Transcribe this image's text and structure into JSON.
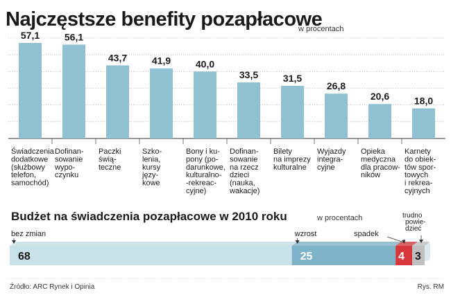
{
  "header": {
    "title": "Najczęstsze benefity pozapłacowe",
    "unit": "w procentach"
  },
  "chart_data": [
    {
      "type": "bar",
      "title": "Najczęstsze benefity pozapłacowe",
      "unit": "w procentach",
      "ylim": [
        0,
        60
      ],
      "grid": true,
      "categories": [
        [
          "Świadczenia",
          "dodatkowe",
          "(służbowy",
          "telefon,",
          "samochód)"
        ],
        [
          "Dofinan-",
          "sowanie",
          "wypo-",
          "czynku"
        ],
        [
          "Paczki",
          "świą-",
          "teczne"
        ],
        [
          "Szko-",
          "lenia,",
          "kursy",
          "języ-",
          "kowe"
        ],
        [
          "Bony i ku-",
          "pony (po-",
          "darunkowe,",
          "kulturalno-",
          "-rekreac-",
          "cyjne)"
        ],
        [
          "Dofinan-",
          "sowanie",
          "na rzecz",
          "dzieci",
          "(nauka,",
          "wakacje)"
        ],
        [
          "Bilety",
          "na imprezy",
          "kulturalne"
        ],
        [
          "Wyjazdy",
          "integra-",
          "cyjne"
        ],
        [
          "Opieka",
          "medyczna",
          "dla pracow-",
          "ników"
        ],
        [
          "Karnety",
          "do obiek-",
          "tów spor-",
          "towych",
          "i rekrea-",
          "cyjnych"
        ]
      ],
      "values": [
        57.1,
        56.1,
        43.7,
        41.9,
        40.0,
        33.5,
        31.5,
        26.8,
        20.6,
        18.0
      ],
      "value_labels": [
        "57,1",
        "56,1",
        "43,7",
        "41,9",
        "40,0",
        "33,5",
        "31,5",
        "26,8",
        "20,6",
        "18,0"
      ]
    },
    {
      "type": "bar",
      "orientation": "horizontal-stacked",
      "title": "Budżet na świadczenia pozapłacowe w 2010 roku",
      "unit": "w procentach",
      "segments": [
        {
          "name": "bez zmian",
          "value": 68,
          "label": "68",
          "color": "#c9e1e8",
          "label_color": "#1a1a1a"
        },
        {
          "name": "wzrost",
          "value": 25,
          "label": "25",
          "color": "#7fb3c8",
          "label_color": "#ffffff"
        },
        {
          "name": "spadek",
          "value": 4,
          "label": "4",
          "color": "#d6373a",
          "label_color": "#ffffff"
        },
        {
          "name": "trudno powie-dzieć",
          "name_lines": [
            "trudno",
            "powie-",
            "dzieć"
          ],
          "value": 3,
          "label": "3",
          "color": "#c0c0c0",
          "label_color": "#1a1a1a"
        }
      ]
    }
  ],
  "colors": {
    "bar": "#8fc1d3",
    "grid": "#9a9a9a"
  },
  "footer": {
    "source": "Źródło: ARC Rynek i Opinia",
    "credit": "Rys. RM"
  }
}
